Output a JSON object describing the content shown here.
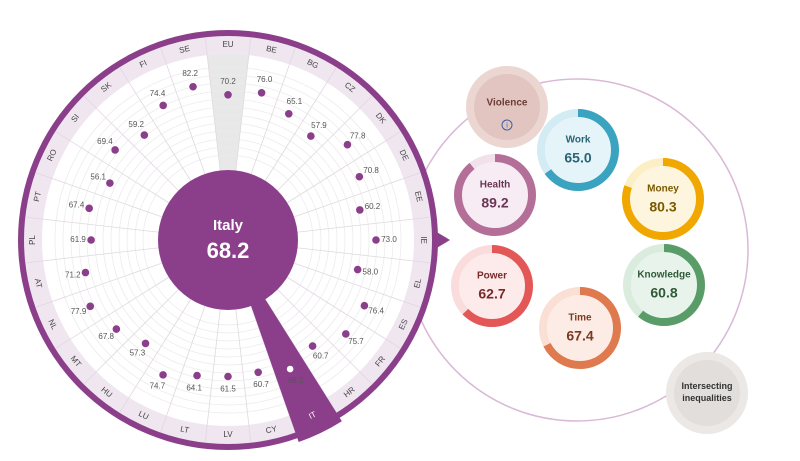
{
  "chart_data": {
    "type": "radial",
    "center_label": "Italy",
    "center_value": 68.2,
    "selected": "IT",
    "baseline": "EU",
    "categories": [
      "EU",
      "BE",
      "BG",
      "CZ",
      "DK",
      "DE",
      "EE",
      "IE",
      "EL",
      "ES",
      "FR",
      "HR",
      "IT",
      "CY",
      "LV",
      "LT",
      "LU",
      "HU",
      "MT",
      "NL",
      "AT",
      "PL",
      "PT",
      "RO",
      "SI",
      "SK",
      "FI",
      "SE"
    ],
    "values": [
      70.2,
      76.0,
      65.1,
      57.9,
      77.8,
      70.8,
      60.2,
      73.0,
      58.0,
      76.4,
      75.7,
      60.7,
      68.2,
      60.7,
      61.5,
      64.1,
      74.7,
      57.3,
      67.8,
      77.9,
      71.2,
      61.9,
      67.4,
      56.1,
      69.4,
      59.2,
      74.4,
      82.2
    ],
    "value_labels": [
      "70.2",
      "76.0",
      "65.1",
      "57.9",
      "77.8",
      "70.8",
      "60.2",
      "73.0",
      "58.0",
      "76.4",
      "75.7",
      "60.7",
      "68.2",
      "60.7",
      "61.5",
      "64.1",
      "74.7",
      "57.3",
      "67.8",
      "77.9",
      "71.2",
      "61.9",
      "67.4",
      "56.1",
      "69.4",
      "59.2",
      "74.4",
      "82.2"
    ],
    "rlim": [
      0,
      100
    ],
    "color": "#8b3f8b"
  },
  "domains": [
    {
      "name": "Violence",
      "color": "#d6b2aa",
      "light": "#ecd6d1",
      "text": "#6a3d36",
      "info": "i"
    },
    {
      "name": "Work",
      "value": 65,
      "label": "65.0",
      "color": "#3aa3c0",
      "light": "#d3ecf3",
      "text": "#2a6475"
    },
    {
      "name": "Money",
      "value": 80.3,
      "label": "80.3",
      "color": "#f0a800",
      "light": "#fcefc6",
      "text": "#7a5a00"
    },
    {
      "name": "Knowledge",
      "value": 60.8,
      "label": "60.8",
      "color": "#5a9c68",
      "light": "#d9ecdd",
      "text": "#2f5a38"
    },
    {
      "name": "Time",
      "value": 67.4,
      "label": "67.4",
      "color": "#df7a4f",
      "light": "#fae0d4",
      "text": "#7a3a20"
    },
    {
      "name": "Power",
      "value": 62.7,
      "label": "62.7",
      "color": "#e35757",
      "light": "#fbdcdc",
      "text": "#7a2a2a"
    },
    {
      "name": "Health",
      "value": 89.2,
      "label": "89.2",
      "color": "#b46f99",
      "light": "#f2e0eb",
      "text": "#6a3656"
    },
    {
      "name": "Intersecting inequalities",
      "color": "#d8d3ce",
      "light": "#ebe8e5",
      "text": "#333333"
    }
  ]
}
